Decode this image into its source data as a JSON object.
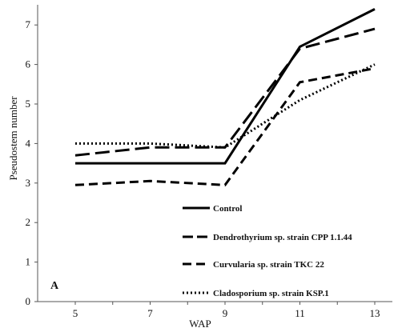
{
  "chart_data": {
    "type": "line",
    "panel_label": "A",
    "xlabel": "WAP",
    "ylabel": "Pseudostem number",
    "x": [
      5,
      7,
      9,
      11,
      13
    ],
    "xlim": [
      5,
      13
    ],
    "ylim": [
      0,
      7.5
    ],
    "yticks": [
      0,
      1,
      2,
      3,
      4,
      5,
      6,
      7
    ],
    "grid": false,
    "legend_position": "bottom-center",
    "series": [
      {
        "name": "Control",
        "values": [
          3.5,
          3.5,
          3.5,
          6.45,
          7.4
        ],
        "style": "solid",
        "color": "#000000"
      },
      {
        "name": "Dendrothyrium sp. strain CPP 1.1.44",
        "values": [
          3.7,
          3.9,
          3.9,
          6.4,
          6.9
        ],
        "style": "long-dash",
        "color": "#000000"
      },
      {
        "name": "Curvularia sp. strain TKC 22",
        "values": [
          2.95,
          3.05,
          2.95,
          5.55,
          5.9
        ],
        "style": "dash",
        "color": "#000000"
      },
      {
        "name": "Cladosporium sp. strain KSP.1",
        "values": [
          4.0,
          4.0,
          3.9,
          5.1,
          6.0
        ],
        "style": "dot",
        "color": "#000000"
      }
    ]
  }
}
